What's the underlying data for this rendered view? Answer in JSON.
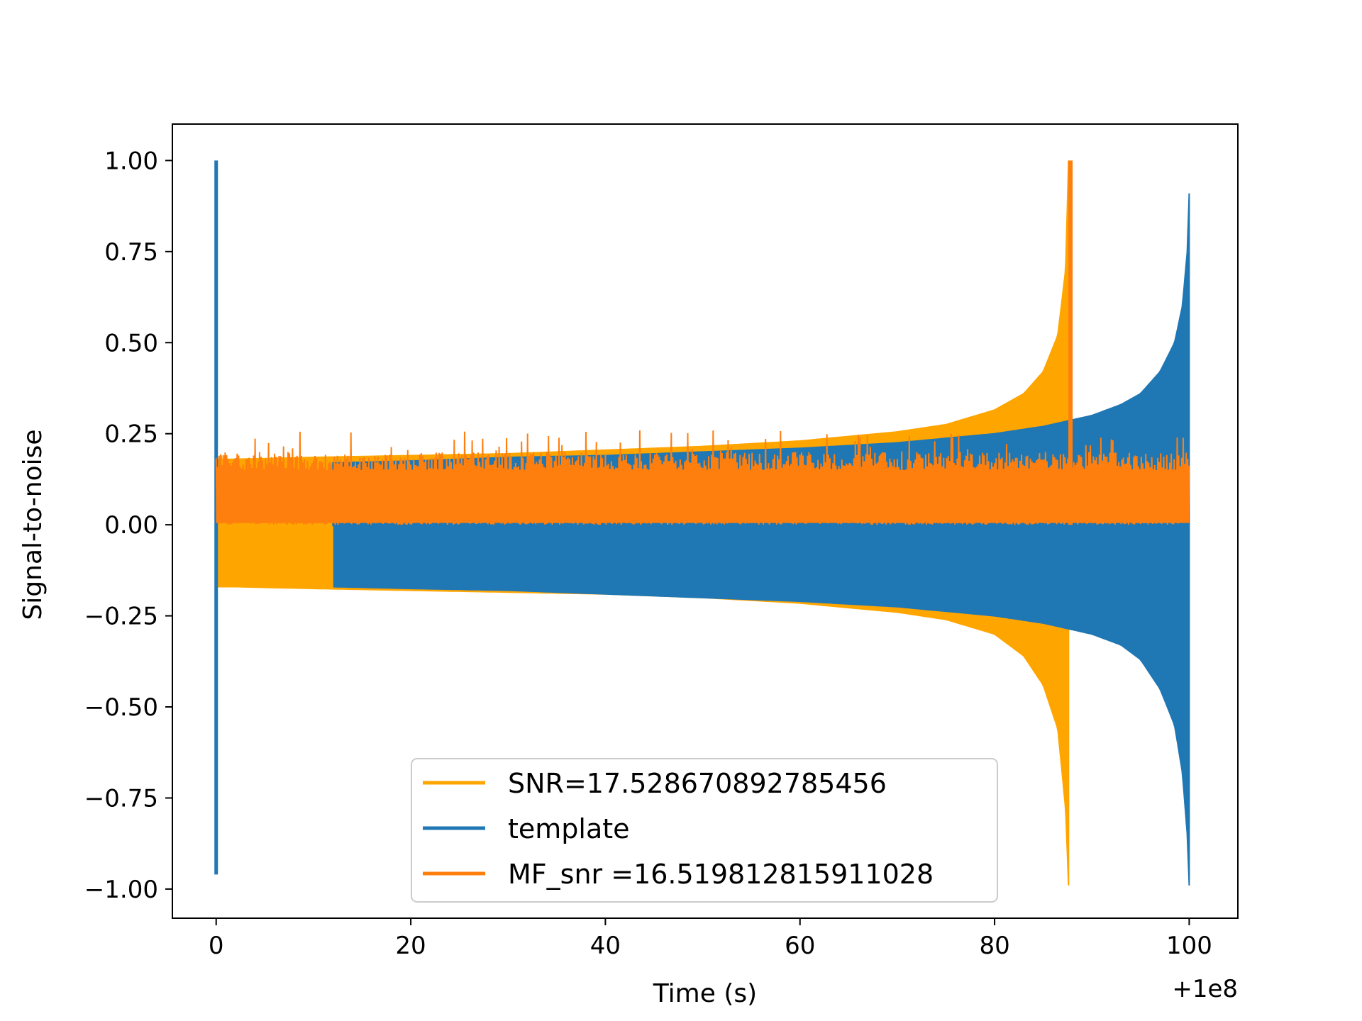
{
  "chart_data": {
    "type": "line",
    "title": "",
    "xlabel": "Time (s)",
    "ylabel": "Signal-to-noise",
    "x_offset_label": "+1e8",
    "xlim": [
      -4.5,
      105
    ],
    "ylim": [
      -1.08,
      1.1
    ],
    "x_ticks": [
      0,
      20,
      40,
      60,
      80,
      100
    ],
    "x_tick_labels": [
      "0",
      "20",
      "40",
      "60",
      "80",
      "100"
    ],
    "y_ticks": [
      1.0,
      0.75,
      0.5,
      0.25,
      0.0,
      -0.25,
      -0.5,
      -0.75,
      -1.0
    ],
    "y_tick_labels": [
      "1.00",
      "0.75",
      "0.50",
      "0.25",
      "0.00",
      "−0.25",
      "−0.50",
      "−0.75",
      "−1.00"
    ],
    "grid": false,
    "legend_position": "lower-center",
    "series": [
      {
        "name": "SNR=17.528670892785456",
        "color": "#ffa500",
        "kind": "envelope",
        "x": [
          0,
          0.5,
          2,
          10,
          20,
          30,
          40,
          50,
          60,
          70,
          75,
          80,
          83,
          85,
          86.5,
          87.3,
          87.6
        ],
        "upper": [
          0.18,
          0.18,
          0.18,
          0.185,
          0.19,
          0.195,
          0.205,
          0.215,
          0.23,
          0.255,
          0.275,
          0.315,
          0.36,
          0.42,
          0.52,
          0.7,
          1.0
        ],
        "lower": [
          -0.17,
          -0.17,
          -0.17,
          -0.175,
          -0.18,
          -0.185,
          -0.19,
          -0.2,
          -0.215,
          -0.24,
          -0.26,
          -0.3,
          -0.36,
          -0.44,
          -0.56,
          -0.78,
          -0.99
        ]
      },
      {
        "name": "template",
        "color": "#1f77b4",
        "kind": "envelope",
        "x": [
          12,
          20,
          30,
          40,
          50,
          60,
          70,
          80,
          85,
          90,
          93,
          95,
          97,
          98.5,
          99.3,
          99.8,
          100
        ],
        "upper": [
          0.17,
          0.175,
          0.185,
          0.19,
          0.2,
          0.21,
          0.225,
          0.25,
          0.27,
          0.3,
          0.33,
          0.36,
          0.42,
          0.5,
          0.6,
          0.75,
          0.91
        ],
        "lower": [
          -0.17,
          -0.175,
          -0.18,
          -0.19,
          -0.2,
          -0.21,
          -0.225,
          -0.25,
          -0.27,
          -0.3,
          -0.33,
          -0.37,
          -0.45,
          -0.55,
          -0.68,
          -0.85,
          -0.99
        ],
        "spike_x": 0,
        "spike_range": [
          -0.96,
          1.0
        ]
      },
      {
        "name": " MF_snr =16.519812815911028",
        "color": "#ff7f0e",
        "kind": "noise",
        "x_range": [
          0,
          100
        ],
        "baseline_range": [
          0.0,
          0.19
        ],
        "peak_x": 87.8,
        "peak_value": 1.0
      }
    ]
  }
}
